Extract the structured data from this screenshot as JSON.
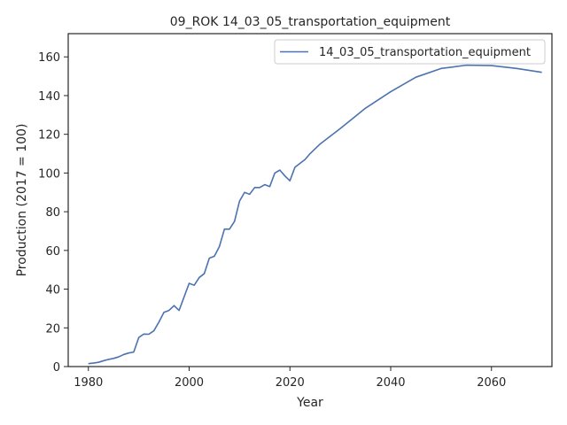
{
  "chart_data": {
    "type": "line",
    "title": "09_ROK 14_03_05_transportation_equipment",
    "xlabel": "Year",
    "ylabel": "Production (2017 = 100)",
    "xlim": [
      1976,
      2072
    ],
    "ylim": [
      0,
      172
    ],
    "xticks": [
      1980,
      2000,
      2020,
      2040,
      2060
    ],
    "yticks": [
      0,
      20,
      40,
      60,
      80,
      100,
      120,
      140,
      160
    ],
    "grid": false,
    "legend_position": "upper right",
    "series": [
      {
        "name": "14_03_05_transportation_equipment",
        "color": "#4c72b0",
        "x": [
          1980,
          1981,
          1982,
          1983,
          1984,
          1985,
          1986,
          1987,
          1988,
          1989,
          1990,
          1991,
          1992,
          1993,
          1994,
          1995,
          1996,
          1997,
          1998,
          1999,
          2000,
          2001,
          2002,
          2003,
          2004,
          2005,
          2006,
          2007,
          2008,
          2009,
          2010,
          2011,
          2012,
          2013,
          2014,
          2015,
          2016,
          2017,
          2018,
          2019,
          2020,
          2021,
          2022,
          2023,
          2024,
          2025,
          2026,
          2027,
          2028,
          2029,
          2030,
          2035,
          2040,
          2045,
          2050,
          2055,
          2060,
          2065,
          2070
        ],
        "y": [
          1.5,
          1.8,
          2.2,
          3.0,
          3.7,
          4.2,
          5.0,
          6.2,
          7.0,
          7.5,
          15.0,
          16.8,
          16.7,
          18.5,
          23.0,
          28.0,
          29.0,
          31.5,
          29.0,
          36.0,
          43.0,
          42.0,
          46.0,
          48.0,
          56.0,
          57.0,
          62.0,
          71.0,
          71.0,
          75.0,
          85.5,
          90.0,
          89.0,
          92.5,
          92.5,
          94.0,
          93.0,
          100.0,
          101.5,
          98.5,
          96.0,
          103.0,
          105.0,
          107.0,
          110.0,
          112.5,
          115.0,
          117.0,
          119.0,
          121.0,
          123.0,
          133.5,
          142.0,
          149.5,
          154.0,
          155.7,
          155.5,
          154.0,
          152.0
        ]
      }
    ]
  }
}
